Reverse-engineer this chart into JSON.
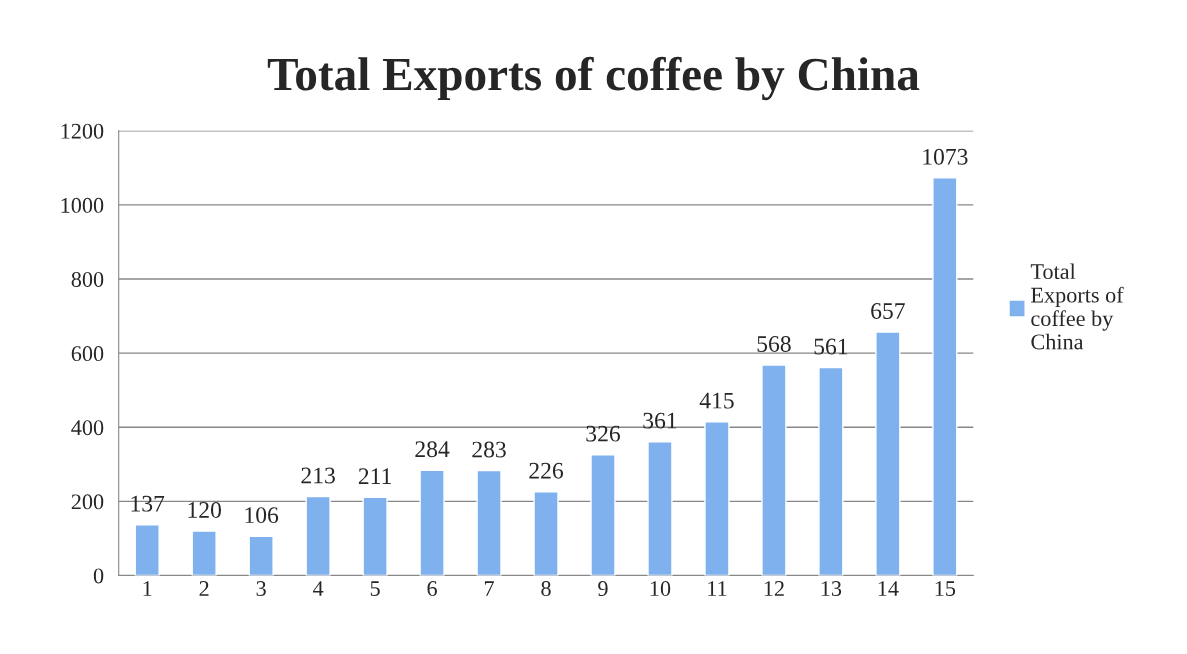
{
  "chart_data": {
    "type": "bar",
    "title": "Total Exports of coffee by China",
    "categories": [
      "1",
      "2",
      "3",
      "4",
      "5",
      "6",
      "7",
      "8",
      "9",
      "10",
      "11",
      "12",
      "13",
      "14",
      "15"
    ],
    "series": [
      {
        "name": "Total Exports of coffee by China",
        "color": "#7fb1ee",
        "values": [
          137,
          120,
          106,
          213,
          211,
          284,
          283,
          226,
          326,
          361,
          415,
          568,
          561,
          657,
          1073
        ]
      }
    ],
    "ylim": [
      0,
      1200
    ],
    "yticks": [
      0,
      200,
      400,
      600,
      800,
      1000,
      1200
    ],
    "grid": "y",
    "legend": "right",
    "data_labels": true
  }
}
